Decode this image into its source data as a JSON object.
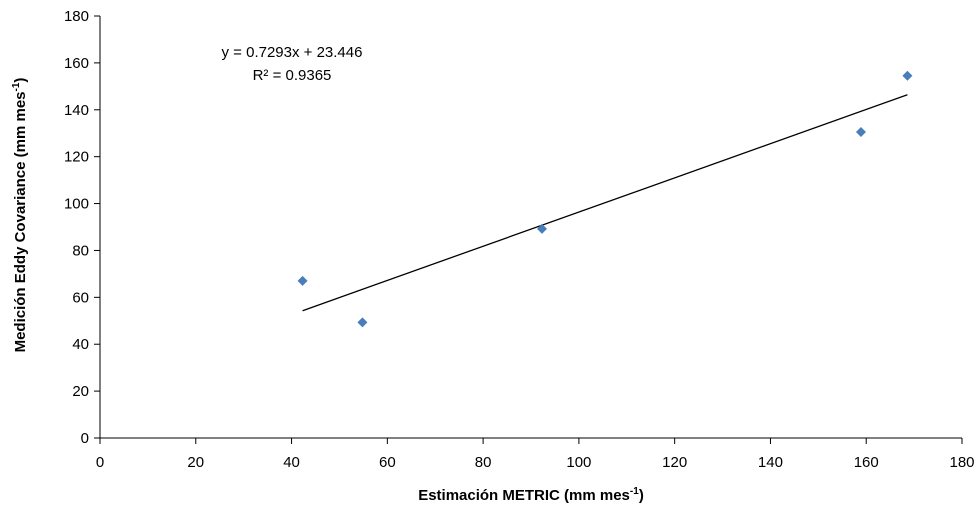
{
  "chart_data": {
    "type": "scatter",
    "title": "",
    "xlabel": {
      "main": "Estimación METRIC (mm mes",
      "sup": "-1",
      "close": ")"
    },
    "ylabel": {
      "main": "Medición Eddy Covariance (mm mes",
      "sup": "-1",
      "close": ")"
    },
    "xlim": [
      0,
      180
    ],
    "ylim": [
      0,
      180
    ],
    "xticks": [
      0,
      20,
      40,
      60,
      80,
      100,
      120,
      140,
      160,
      180
    ],
    "yticks": [
      0,
      20,
      40,
      60,
      80,
      100,
      120,
      140,
      160,
      180
    ],
    "grid": false,
    "series": [
      {
        "marker": "diamond",
        "color": "#4a7ebb",
        "points": [
          {
            "x": 42.3,
            "y": 67.0
          },
          {
            "x": 54.8,
            "y": 49.3
          },
          {
            "x": 92.3,
            "y": 89.2
          },
          {
            "x": 158.9,
            "y": 130.5
          },
          {
            "x": 168.6,
            "y": 154.5
          }
        ]
      }
    ],
    "trendline": {
      "slope": 0.7293,
      "intercept": 23.446,
      "x_range": [
        42.3,
        168.6
      ],
      "color": "#000000"
    },
    "annotations": {
      "equation": "y = 0.7293x + 23.446",
      "r_squared": "R² = 0.9365"
    }
  }
}
